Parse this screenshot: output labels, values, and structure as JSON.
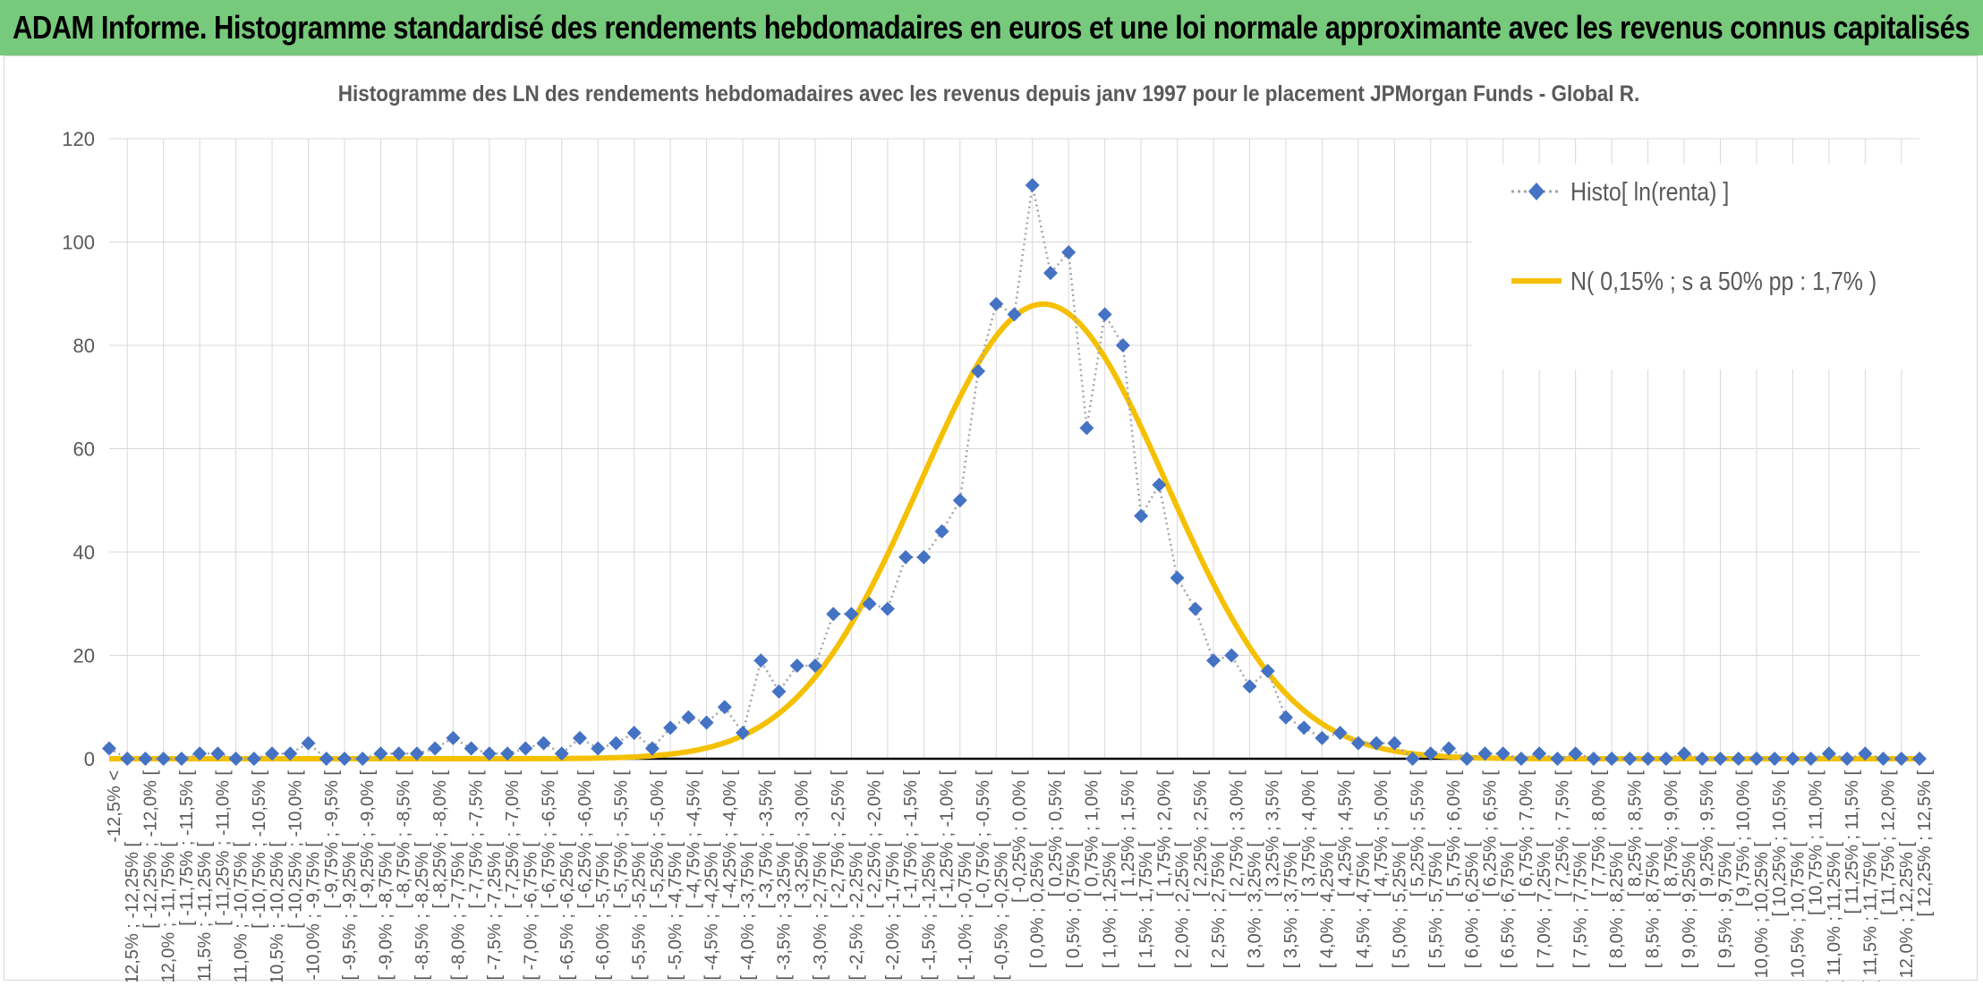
{
  "header": {
    "title": "ADAM Informe. Histogramme standardisé des rendements hebdomadaires en euros et une loi normale approximante avec les revenus connus capitalisés"
  },
  "chart_data": {
    "type": "line",
    "title": "Histogramme des LN des rendements hebdomadaires avec les revenus depuis janv 1997 pour le placement JPMorgan Funds - Global R.",
    "xlabel": "",
    "ylabel": "",
    "ylim": [
      0,
      120
    ],
    "yticks": [
      0,
      20,
      40,
      60,
      80,
      100,
      120
    ],
    "grid": true,
    "legend_position": "top-right",
    "categories": [
      "-12,5% <",
      "[ -12,5% ; -12,25% [",
      "[ -12,25% ; -12,0% [",
      "[ -12,0% ; -11,75% [",
      "[ -11,75% ; -11,5% [",
      "[ -11,5% ; -11,25% [",
      "[ -11,25% ; -11,0% [",
      "[ -11,0% ; -10,75% [",
      "[ -10,75% ; -10,5% [",
      "[ -10,5% ; -10,25% [",
      "[ -10,25% ; -10,0% [",
      "[ -10,0% ; -9,75% [",
      "[ -9,75% ; -9,5% [",
      "[ -9,5% ; -9,25% [",
      "[ -9,25% ; -9,0% [",
      "[ -9,0% ; -8,75% [",
      "[ -8,75% ; -8,5% [",
      "[ -8,5% ; -8,25% [",
      "[ -8,25% ; -8,0% [",
      "[ -8,0% ; -7,75% [",
      "[ -7,75% ; -7,5% [",
      "[ -7,5% ; -7,25% [",
      "[ -7,25% ; -7,0% [",
      "[ -7,0% ; -6,75% [",
      "[ -6,75% ; -6,5% [",
      "[ -6,5% ; -6,25% [",
      "[ -6,25% ; -6,0% [",
      "[ -6,0% ; -5,75% [",
      "[ -5,75% ; -5,5% [",
      "[ -5,5% ; -5,25% [",
      "[ -5,25% ; -5,0% [",
      "[ -5,0% ; -4,75% [",
      "[ -4,75% ; -4,5% [",
      "[ -4,5% ; -4,25% [",
      "[ -4,25% ; -4,0% [",
      "[ -4,0% ; -3,75% [",
      "[ -3,75% ; -3,5% [",
      "[ -3,5% ; -3,25% [",
      "[ -3,25% ; -3,0% [",
      "[ -3,0% ; -2,75% [",
      "[ -2,75% ; -2,5% [",
      "[ -2,5% ; -2,25% [",
      "[ -2,25% ; -2,0% [",
      "[ -2,0% ; -1,75% [",
      "[ -1,75% ; -1,5% [",
      "[ -1,5% ; -1,25% [",
      "[ -1,25% ; -1,0% [",
      "[ -1,0% ; -0,75% [",
      "[ -0,75% ; -0,5% [",
      "[ -0,5% ; -0,25% [",
      "[ -0,25% ; 0,0% [",
      "[ 0,0% ; 0,25% [",
      "[ 0,25% ; 0,5% [",
      "[ 0,5% ; 0,75% [",
      "[ 0,75% ; 1,0% [",
      "[ 1,0% ; 1,25% [",
      "[ 1,25% ; 1,5% [",
      "[ 1,5% ; 1,75% [",
      "[ 1,75% ; 2,0% [",
      "[ 2,0% ; 2,25% [",
      "[ 2,25% ; 2,5% [",
      "[ 2,5% ; 2,75% [",
      "[ 2,75% ; 3,0% [",
      "[ 3,0% ; 3,25% [",
      "[ 3,25% ; 3,5% [",
      "[ 3,5% ; 3,75% [",
      "[ 3,75% ; 4,0% [",
      "[ 4,0% ; 4,25% [",
      "[ 4,25% ; 4,5% [",
      "[ 4,5% ; 4,75% [",
      "[ 4,75% ; 5,0% [",
      "[ 5,0% ; 5,25% [",
      "[ 5,25% ; 5,5% [",
      "[ 5,5% ; 5,75% [",
      "[ 5,75% ; 6,0% [",
      "[ 6,0% ; 6,25% [",
      "[ 6,25% ; 6,5% [",
      "[ 6,5% ; 6,75% [",
      "[ 6,75% ; 7,0% [",
      "[ 7,0% ; 7,25% [",
      "[ 7,25% ; 7,5% [",
      "[ 7,5% ; 7,75% [",
      "[ 7,75% ; 8,0% [",
      "[ 8,0% ; 8,25% [",
      "[ 8,25% ; 8,5% [",
      "[ 8,5% ; 8,75% [",
      "[ 8,75% ; 9,0% [",
      "[ 9,0% ; 9,25% [",
      "[ 9,25% ; 9,5% [",
      "[ 9,5% ; 9,75% [",
      "[ 9,75% ; 10,0% [",
      "[ 10,0% ; 10,25% [",
      "[ 10,25% ; 10,5% [",
      "[ 10,5% ; 10,75% [",
      "[ 10,75% ; 11,0% [",
      "[ 11,0% ; 11,25% [",
      "[ 11,25% ; 11,5% [",
      "[ 11,5% ; 11,75% [",
      "[ 11,75% ; 12,0% [",
      "[ 12,0% ; 12,25% [",
      "[ 12,25% ; 12,5% ["
    ],
    "series": [
      {
        "name": "Histo[ ln(renta) ]",
        "color": "#4472c4",
        "line_color": "#a5a5a5",
        "marker": "diamond",
        "values": [
          2,
          0,
          0,
          0,
          0,
          1,
          1,
          0,
          0,
          1,
          1,
          3,
          0,
          0,
          0,
          1,
          1,
          1,
          2,
          4,
          2,
          1,
          1,
          2,
          3,
          1,
          4,
          2,
          3,
          5,
          2,
          6,
          8,
          7,
          10,
          5,
          19,
          13,
          18,
          18,
          28,
          28,
          30,
          29,
          39,
          39,
          44,
          50,
          75,
          88,
          86,
          111,
          94,
          98,
          64,
          86,
          80,
          47,
          53,
          35,
          29,
          19,
          20,
          14,
          17,
          8,
          6,
          4,
          5,
          3,
          3,
          3,
          0,
          1,
          2,
          0,
          1,
          1,
          0,
          1,
          0,
          1,
          0,
          0,
          0,
          0,
          0,
          1,
          0,
          0,
          0,
          0,
          0,
          0,
          0,
          1,
          0,
          1,
          0,
          0,
          0
        ]
      },
      {
        "name": "N( 0,15% ; s a 50% pp : 1,7% )",
        "color": "#f5c000",
        "type": "normal_curve",
        "mean_category_index": 51.6,
        "sd_categories": 6.8,
        "peak": 88
      }
    ]
  }
}
